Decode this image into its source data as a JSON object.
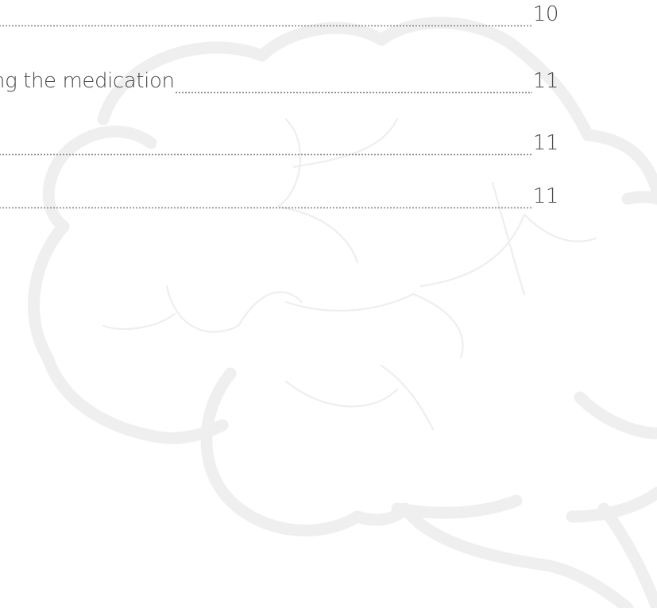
{
  "toc": {
    "entries": [
      {
        "title": "",
        "page": "10"
      },
      {
        "title": "ng the medication",
        "page": "11"
      },
      {
        "title": "",
        "page": "11"
      },
      {
        "title": "",
        "page": "11"
      }
    ]
  },
  "decoration": {
    "watermark_icon": "brain-outline-icon",
    "watermark_color": "#efefef"
  }
}
